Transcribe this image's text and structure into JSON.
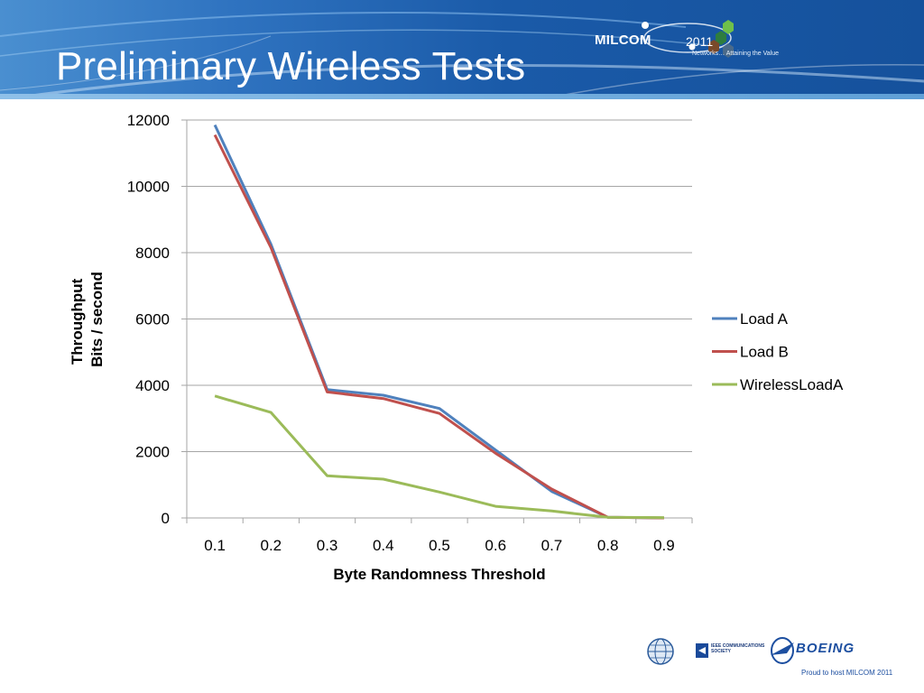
{
  "slide": {
    "title": "Preliminary Wireless Tests"
  },
  "header_logo": {
    "name": "MILCOM",
    "year": "2011",
    "tagline": "Networks… Attaining the Value"
  },
  "footer": {
    "ieee_text": "IEEE COMMUNICATIONS SOCIETY",
    "boeing_text": "BOEING",
    "proud_text": "Proud to host MILCOM 2011"
  },
  "chart_data": {
    "type": "line",
    "x": [
      0.1,
      0.2,
      0.3,
      0.4,
      0.5,
      0.6,
      0.7,
      0.8,
      0.9
    ],
    "x_tick_labels": [
      "0.1",
      "0.2",
      "0.3",
      "0.4",
      "0.5",
      "0.6",
      "0.7",
      "0.8",
      "0.9"
    ],
    "y_tick_labels": [
      "0",
      "2000",
      "4000",
      "6000",
      "8000",
      "10000",
      "12000"
    ],
    "ylim": [
      0,
      12000
    ],
    "xlabel": "Byte Randomness Threshold",
    "ylabel": [
      "Throughput",
      "Bits / second"
    ],
    "grid": "horizontal",
    "legend_position": "right",
    "series": [
      {
        "name": "Load A",
        "color": "#4f81bd",
        "values": [
          11850,
          8250,
          3870,
          3700,
          3300,
          2050,
          800,
          20,
          0
        ]
      },
      {
        "name": "Load B",
        "color": "#c0504d",
        "values": [
          11550,
          8150,
          3800,
          3600,
          3150,
          1950,
          870,
          20,
          0
        ]
      },
      {
        "name": "WirelessLoadA",
        "color": "#9bbb59",
        "values": [
          3680,
          3180,
          1270,
          1170,
          780,
          350,
          210,
          20,
          10
        ]
      }
    ]
  }
}
